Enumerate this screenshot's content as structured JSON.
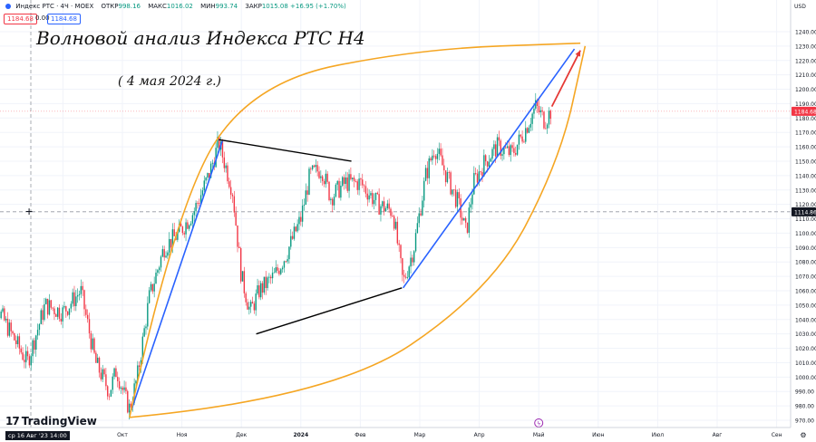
{
  "header": {
    "instrument": "Индекс РТС · 4Ч · MOEX",
    "open_label": "ОТКР",
    "open_value": "998.16",
    "high_label": "МАКС",
    "high_value": "1016.02",
    "low_label": "МИН",
    "low_value": "993.74",
    "close_label": "ЗАКР",
    "close_value": "1015.08",
    "change": "+16.95 (+1.70%)",
    "bid": "1184.68",
    "spread": "0.00",
    "ask": "1184.68"
  },
  "annotations": {
    "title": "Волновой анализ Индекса РТС H4",
    "date": "( 4 мая 2024 г.)"
  },
  "branding": {
    "logo_text": "TradingView",
    "logo_mark": "17"
  },
  "crosshair": {
    "time_label": "ср 16 Авг '23  14:00",
    "price_label": "1114.86"
  },
  "currency": "USD",
  "colors": {
    "up": "#089981",
    "down": "#f23645",
    "wave_line": "#2962ff",
    "triangle": "#000000",
    "curve": "#f5a623",
    "arrow": "#e53935",
    "price_tag": "#f23645",
    "cross_tag": "#131722"
  },
  "chart_data": {
    "type": "candlestick",
    "instrument": "Индекс РТС",
    "timeframe": "4Ч",
    "last_price": 1184.68,
    "crosshair_price": 1114.86,
    "ylim": [
      965,
      1245
    ],
    "y_ticks": [
      970,
      980,
      990,
      1000,
      1010,
      1020,
      1030,
      1040,
      1050,
      1060,
      1070,
      1080,
      1090,
      1100,
      1110,
      1120,
      1130,
      1140,
      1150,
      1160,
      1170,
      1180,
      1190,
      1200,
      1210,
      1220,
      1230,
      1240
    ],
    "x_ticks": [
      {
        "label": "Сен",
        "x": 0.0
      },
      {
        "label": "Окт",
        "x": 1.0
      },
      {
        "label": "Ноя",
        "x": 2.0
      },
      {
        "label": "Дек",
        "x": 3.0
      },
      {
        "label": "2024",
        "x": 4.0
      },
      {
        "label": "Фев",
        "x": 5.0
      },
      {
        "label": "Мар",
        "x": 6.0
      },
      {
        "label": "Апр",
        "x": 7.0
      },
      {
        "label": "Май",
        "x": 8.0
      },
      {
        "label": "Июн",
        "x": 9.0
      },
      {
        "label": "Июл",
        "x": 10.0
      },
      {
        "label": "Авг",
        "x": 11.0
      },
      {
        "label": "Сен",
        "x": 12.0
      }
    ],
    "price_path": [
      [
        -1.32,
        1065
      ],
      [
        -1.0,
        1040
      ],
      [
        -0.6,
        1010
      ],
      [
        -0.3,
        1050
      ],
      [
        0.0,
        1045
      ],
      [
        0.3,
        1060
      ],
      [
        0.55,
        1010
      ],
      [
        0.78,
        990
      ],
      [
        0.9,
        1005
      ],
      [
        1.05,
        985
      ],
      [
        1.12,
        978
      ],
      [
        1.25,
        1000
      ],
      [
        1.45,
        1055
      ],
      [
        1.7,
        1090
      ],
      [
        1.95,
        1100
      ],
      [
        2.2,
        1115
      ],
      [
        2.45,
        1140
      ],
      [
        2.62,
        1163
      ],
      [
        2.85,
        1130
      ],
      [
        3.0,
        1070
      ],
      [
        3.15,
        1045
      ],
      [
        3.3,
        1060
      ],
      [
        3.55,
        1070
      ],
      [
        3.75,
        1085
      ],
      [
        4.0,
        1110
      ],
      [
        4.15,
        1140
      ],
      [
        4.35,
        1145
      ],
      [
        4.5,
        1125
      ],
      [
        4.75,
        1135
      ],
      [
        5.0,
        1135
      ],
      [
        5.3,
        1120
      ],
      [
        5.55,
        1115
      ],
      [
        5.72,
        1065
      ],
      [
        5.9,
        1090
      ],
      [
        6.1,
        1140
      ],
      [
        6.25,
        1160
      ],
      [
        6.45,
        1140
      ],
      [
        6.65,
        1120
      ],
      [
        6.78,
        1100
      ],
      [
        6.9,
        1135
      ],
      [
        7.1,
        1150
      ],
      [
        7.3,
        1160
      ],
      [
        7.55,
        1155
      ],
      [
        7.75,
        1170
      ],
      [
        7.95,
        1188
      ],
      [
        8.1,
        1178
      ],
      [
        8.2,
        1184.68
      ]
    ],
    "drawings": {
      "impulse_line": [
        [
          1.15,
          977
        ],
        [
          2.68,
          1164
        ]
      ],
      "triangle_upper": [
        [
          2.62,
          1165
        ],
        [
          4.85,
          1150
        ]
      ],
      "triangle_lower": [
        [
          3.25,
          1030
        ],
        [
          5.7,
          1062
        ]
      ],
      "uptrend_line": [
        [
          5.72,
          1062
        ],
        [
          8.6,
          1228
        ]
      ],
      "target_arrow": [
        [
          8.22,
          1188
        ],
        [
          8.7,
          1227
        ]
      ],
      "curve_upper": [
        [
          1.12,
          972
        ],
        [
          1.9,
          1120
        ],
        [
          3.2,
          1205
        ],
        [
          6.0,
          1228
        ],
        [
          8.7,
          1232
        ]
      ],
      "curve_lower": [
        [
          1.12,
          972
        ],
        [
          4.5,
          985
        ],
        [
          7.2,
          1060
        ],
        [
          8.35,
          1150
        ],
        [
          8.78,
          1230
        ]
      ]
    }
  }
}
